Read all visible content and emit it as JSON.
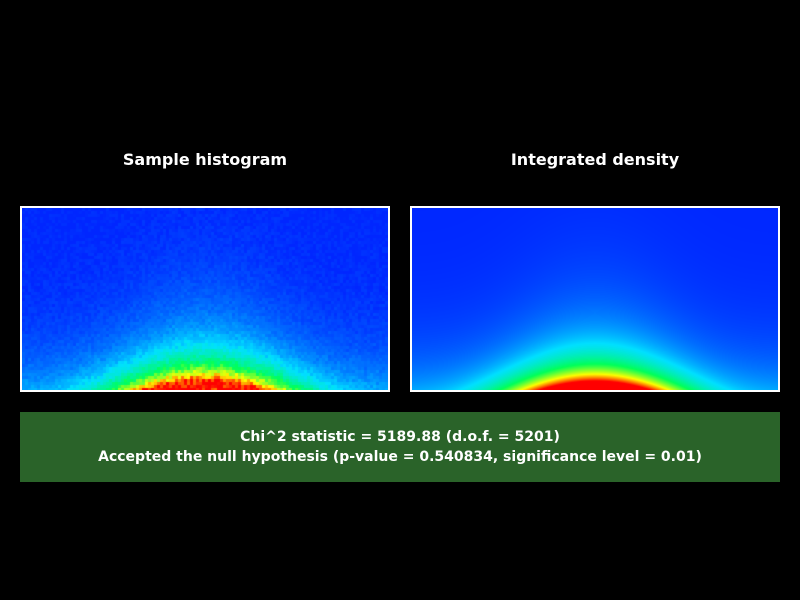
{
  "panels": {
    "left_title": "Sample histogram",
    "right_title": "Integrated density"
  },
  "result": {
    "statistic_line": "Chi^2 statistic = 5189.88 (d.o.f. = 5201)",
    "hypothesis_line": "Accepted the null hypothesis (p-value = 0.540834, significance level = 0.01)",
    "chi2": 5189.88,
    "dof": 5201,
    "p_value": 0.540834,
    "significance_level": 0.01,
    "decision": "Accepted"
  },
  "colors": {
    "background": "#000000",
    "result_box": "#2a6329",
    "frame_border": "#ffffff",
    "colormap": [
      "#0026ff",
      "#00e0ff",
      "#00ff5a",
      "#ffff00",
      "#ff0000"
    ]
  }
}
